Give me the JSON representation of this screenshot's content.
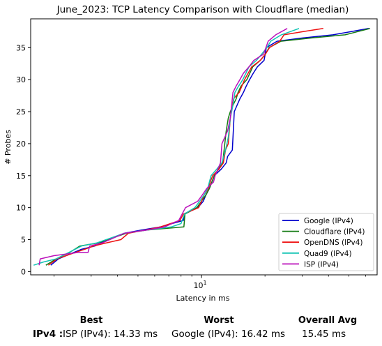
{
  "chart_data": {
    "type": "line",
    "title": "June_2023: TCP Latency Comparison with Cloudflare (median)",
    "xlabel": "Latency in ms",
    "ylabel": "# Probes",
    "xscale": "log",
    "xlim": [
      1.55,
      68
    ],
    "ylim": [
      -0.5,
      39.5
    ],
    "yticks": [
      0,
      5,
      10,
      15,
      20,
      25,
      30,
      35
    ],
    "xtick_major": {
      "value": 10,
      "label": "10",
      "label_exponent": "1",
      "label_base": "10"
    },
    "xtick_minor": [
      2,
      3,
      4,
      5,
      6,
      7,
      8,
      9,
      20,
      30,
      40,
      50,
      60
    ],
    "legend_position": "lower-right",
    "series": [
      {
        "name": "Google (IPv4)",
        "color": "#0000cc",
        "points": [
          [
            1.93,
            1
          ],
          [
            2.1,
            2
          ],
          [
            2.48,
            3
          ],
          [
            2.7,
            3.5
          ],
          [
            3.12,
            4
          ],
          [
            3.58,
            5
          ],
          [
            4.3,
            6
          ],
          [
            5.2,
            6.5
          ],
          [
            6.4,
            7
          ],
          [
            8.2,
            8
          ],
          [
            8.3,
            9
          ],
          [
            9.6,
            10
          ],
          [
            10.2,
            11
          ],
          [
            10.5,
            12
          ],
          [
            10.9,
            13
          ],
          [
            11.2,
            14
          ],
          [
            11.5,
            15
          ],
          [
            12.4,
            16
          ],
          [
            13.1,
            17
          ],
          [
            13.3,
            18
          ],
          [
            14.0,
            19
          ],
          [
            14.3,
            25
          ],
          [
            15.2,
            27
          ],
          [
            15.8,
            28
          ],
          [
            16.3,
            29
          ],
          [
            16.9,
            30
          ],
          [
            17.6,
            31
          ],
          [
            18.4,
            32
          ],
          [
            19.8,
            33
          ],
          [
            20.3,
            35
          ],
          [
            22.8,
            36
          ],
          [
            30.0,
            36.5
          ],
          [
            42.0,
            37
          ],
          [
            62.0,
            38
          ]
        ]
      },
      {
        "name": "Cloudflare (IPv4)",
        "color": "#137a13",
        "points": [
          [
            1.83,
            1
          ],
          [
            2.05,
            2
          ],
          [
            2.37,
            3
          ],
          [
            2.65,
            4
          ],
          [
            3.25,
            4.5
          ],
          [
            4.4,
            6
          ],
          [
            5.5,
            6.5
          ],
          [
            8.25,
            7
          ],
          [
            8.3,
            8
          ],
          [
            8.35,
            9
          ],
          [
            9.5,
            10
          ],
          [
            10.0,
            11
          ],
          [
            10.5,
            12
          ],
          [
            10.9,
            13
          ],
          [
            11.2,
            14
          ],
          [
            11.5,
            15
          ],
          [
            12.6,
            17
          ],
          [
            12.9,
            20
          ],
          [
            13.1,
            22
          ],
          [
            13.4,
            24
          ],
          [
            13.7,
            25
          ],
          [
            14.1,
            26
          ],
          [
            14.6,
            27
          ],
          [
            14.9,
            28
          ],
          [
            15.4,
            29
          ],
          [
            16.4,
            30
          ],
          [
            17.5,
            32
          ],
          [
            19.0,
            33
          ],
          [
            20.1,
            34
          ],
          [
            20.9,
            35
          ],
          [
            23.8,
            36
          ],
          [
            33.0,
            36.5
          ],
          [
            48.0,
            37
          ],
          [
            63.0,
            38
          ]
        ]
      },
      {
        "name": "OpenDNS (IPv4)",
        "color": "#ee1111",
        "points": [
          [
            1.88,
            1
          ],
          [
            2.07,
            2
          ],
          [
            2.52,
            3
          ],
          [
            2.8,
            3.5
          ],
          [
            3.08,
            4
          ],
          [
            3.55,
            4.5
          ],
          [
            4.15,
            5
          ],
          [
            4.5,
            6
          ],
          [
            5.4,
            6.5
          ],
          [
            6.4,
            7
          ],
          [
            7.9,
            8
          ],
          [
            8.2,
            9
          ],
          [
            9.7,
            10
          ],
          [
            10.0,
            11
          ],
          [
            10.3,
            12
          ],
          [
            10.8,
            13
          ],
          [
            11.0,
            14
          ],
          [
            11.3,
            15
          ],
          [
            12.1,
            16
          ],
          [
            12.7,
            17
          ],
          [
            13.0,
            19
          ],
          [
            13.4,
            20
          ],
          [
            13.7,
            24
          ],
          [
            14.2,
            27
          ],
          [
            14.6,
            27.5
          ],
          [
            15.1,
            28
          ],
          [
            16.0,
            30
          ],
          [
            17.3,
            32
          ],
          [
            19.0,
            33
          ],
          [
            20.1,
            34
          ],
          [
            21.0,
            35
          ],
          [
            23.5,
            36
          ],
          [
            24.6,
            37
          ],
          [
            30.2,
            37.5
          ],
          [
            37.8,
            38
          ]
        ]
      },
      {
        "name": "Quad9 (IPv4)",
        "color": "#11c4b4",
        "points": [
          [
            1.6,
            1
          ],
          [
            1.78,
            1.5
          ],
          [
            2.05,
            2
          ],
          [
            2.35,
            3
          ],
          [
            2.7,
            4
          ],
          [
            3.2,
            4.5
          ],
          [
            4.3,
            6
          ],
          [
            5.5,
            6.5
          ],
          [
            7.2,
            7
          ],
          [
            8.0,
            7.5
          ],
          [
            8.3,
            9
          ],
          [
            9.3,
            10
          ],
          [
            9.8,
            11
          ],
          [
            10.3,
            12
          ],
          [
            10.7,
            13
          ],
          [
            11.1,
            15
          ],
          [
            11.8,
            16
          ],
          [
            12.5,
            17
          ],
          [
            13.0,
            19
          ],
          [
            13.4,
            21
          ],
          [
            13.7,
            24
          ],
          [
            14.1,
            26
          ],
          [
            14.4,
            28
          ],
          [
            15.0,
            29
          ],
          [
            15.7,
            30
          ],
          [
            16.8,
            32
          ],
          [
            18.2,
            33
          ],
          [
            19.3,
            34
          ],
          [
            20.4,
            35
          ],
          [
            21.3,
            36
          ],
          [
            23.9,
            37
          ],
          [
            29.0,
            38
          ]
        ]
      },
      {
        "name": "ISP (IPv4)",
        "color": "#bb11bb",
        "points": [
          [
            1.7,
            1
          ],
          [
            1.72,
            2
          ],
          [
            2.0,
            2.5
          ],
          [
            2.6,
            3
          ],
          [
            2.9,
            3
          ],
          [
            2.95,
            4
          ],
          [
            3.4,
            4.5
          ],
          [
            4.3,
            6
          ],
          [
            5.5,
            6.5
          ],
          [
            6.7,
            7
          ],
          [
            7.8,
            8
          ],
          [
            8.4,
            10
          ],
          [
            9.6,
            11
          ],
          [
            10.1,
            12
          ],
          [
            10.6,
            13
          ],
          [
            11.4,
            14
          ],
          [
            11.6,
            15
          ],
          [
            12.3,
            17
          ],
          [
            12.5,
            20
          ],
          [
            12.9,
            21
          ],
          [
            13.3,
            22
          ],
          [
            13.7,
            24
          ],
          [
            14.1,
            28
          ],
          [
            14.6,
            29
          ],
          [
            15.2,
            30
          ],
          [
            15.8,
            31
          ],
          [
            16.8,
            32
          ],
          [
            17.7,
            33
          ],
          [
            19.7,
            34
          ],
          [
            20.7,
            36
          ],
          [
            22.5,
            37
          ],
          [
            25.5,
            38
          ]
        ]
      }
    ]
  },
  "summary": {
    "headers": {
      "best": "Best",
      "worst": "Worst",
      "overall": "Overall Avg"
    },
    "row_label": "IPv4 :",
    "best_value": "ISP (IPv4): 14.33 ms",
    "worst_value": "Google (IPv4): 16.42 ms",
    "overall_value": "15.45 ms"
  }
}
